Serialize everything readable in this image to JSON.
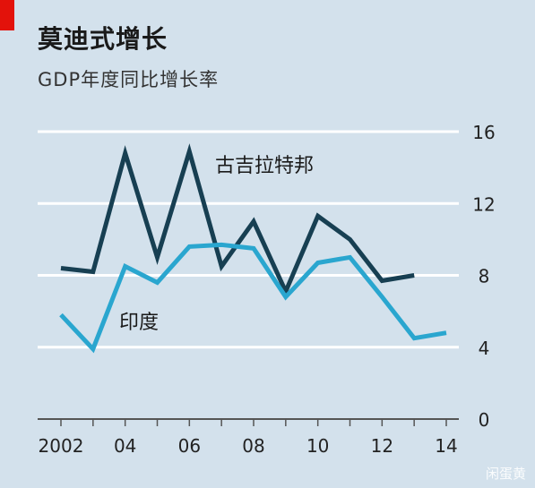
{
  "header": {
    "title": "莫迪式增长",
    "subtitle": "GDP年度同比增长率"
  },
  "watermark": "闲蛋黄",
  "colors": {
    "background": "#d3e1ec",
    "gujarat": "#173f52",
    "india": "#2aa6cf",
    "grid": "#ffffff",
    "axis": "#555555",
    "accent": "#e3120b"
  },
  "chart_data": {
    "type": "line",
    "title": "莫迪式增长",
    "subtitle": "GDP年度同比增长率",
    "xlabel": "",
    "ylabel": "",
    "x": [
      2002,
      2003,
      2004,
      2005,
      2006,
      2007,
      2008,
      2009,
      2010,
      2011,
      2012,
      2013,
      2014
    ],
    "x_tick_values": [
      2002,
      2004,
      2006,
      2008,
      2010,
      2012,
      2014
    ],
    "x_tick_labels": [
      "2002",
      "04",
      "06",
      "08",
      "10",
      "12",
      "14"
    ],
    "y_ticks": [
      0,
      4,
      8,
      12,
      16
    ],
    "ylim": [
      0,
      16
    ],
    "xlim": [
      2002,
      2014
    ],
    "grid": true,
    "y_axis_side": "right",
    "series": [
      {
        "name": "古吉拉特邦",
        "color": "#173f52",
        "x": [
          2002,
          2003,
          2004,
          2005,
          2006,
          2007,
          2008,
          2009,
          2010,
          2011,
          2012,
          2013
        ],
        "values": [
          8.4,
          8.2,
          14.8,
          9.0,
          14.9,
          8.5,
          11.0,
          7.1,
          11.3,
          10.0,
          7.7,
          8.0
        ]
      },
      {
        "name": "印度",
        "color": "#2aa6cf",
        "x": [
          2002,
          2003,
          2004,
          2005,
          2006,
          2007,
          2008,
          2009,
          2010,
          2011,
          2012,
          2013,
          2014
        ],
        "values": [
          5.8,
          3.9,
          8.5,
          7.6,
          9.6,
          9.7,
          9.5,
          6.8,
          8.7,
          9.0,
          6.8,
          4.5,
          4.8
        ]
      }
    ]
  }
}
